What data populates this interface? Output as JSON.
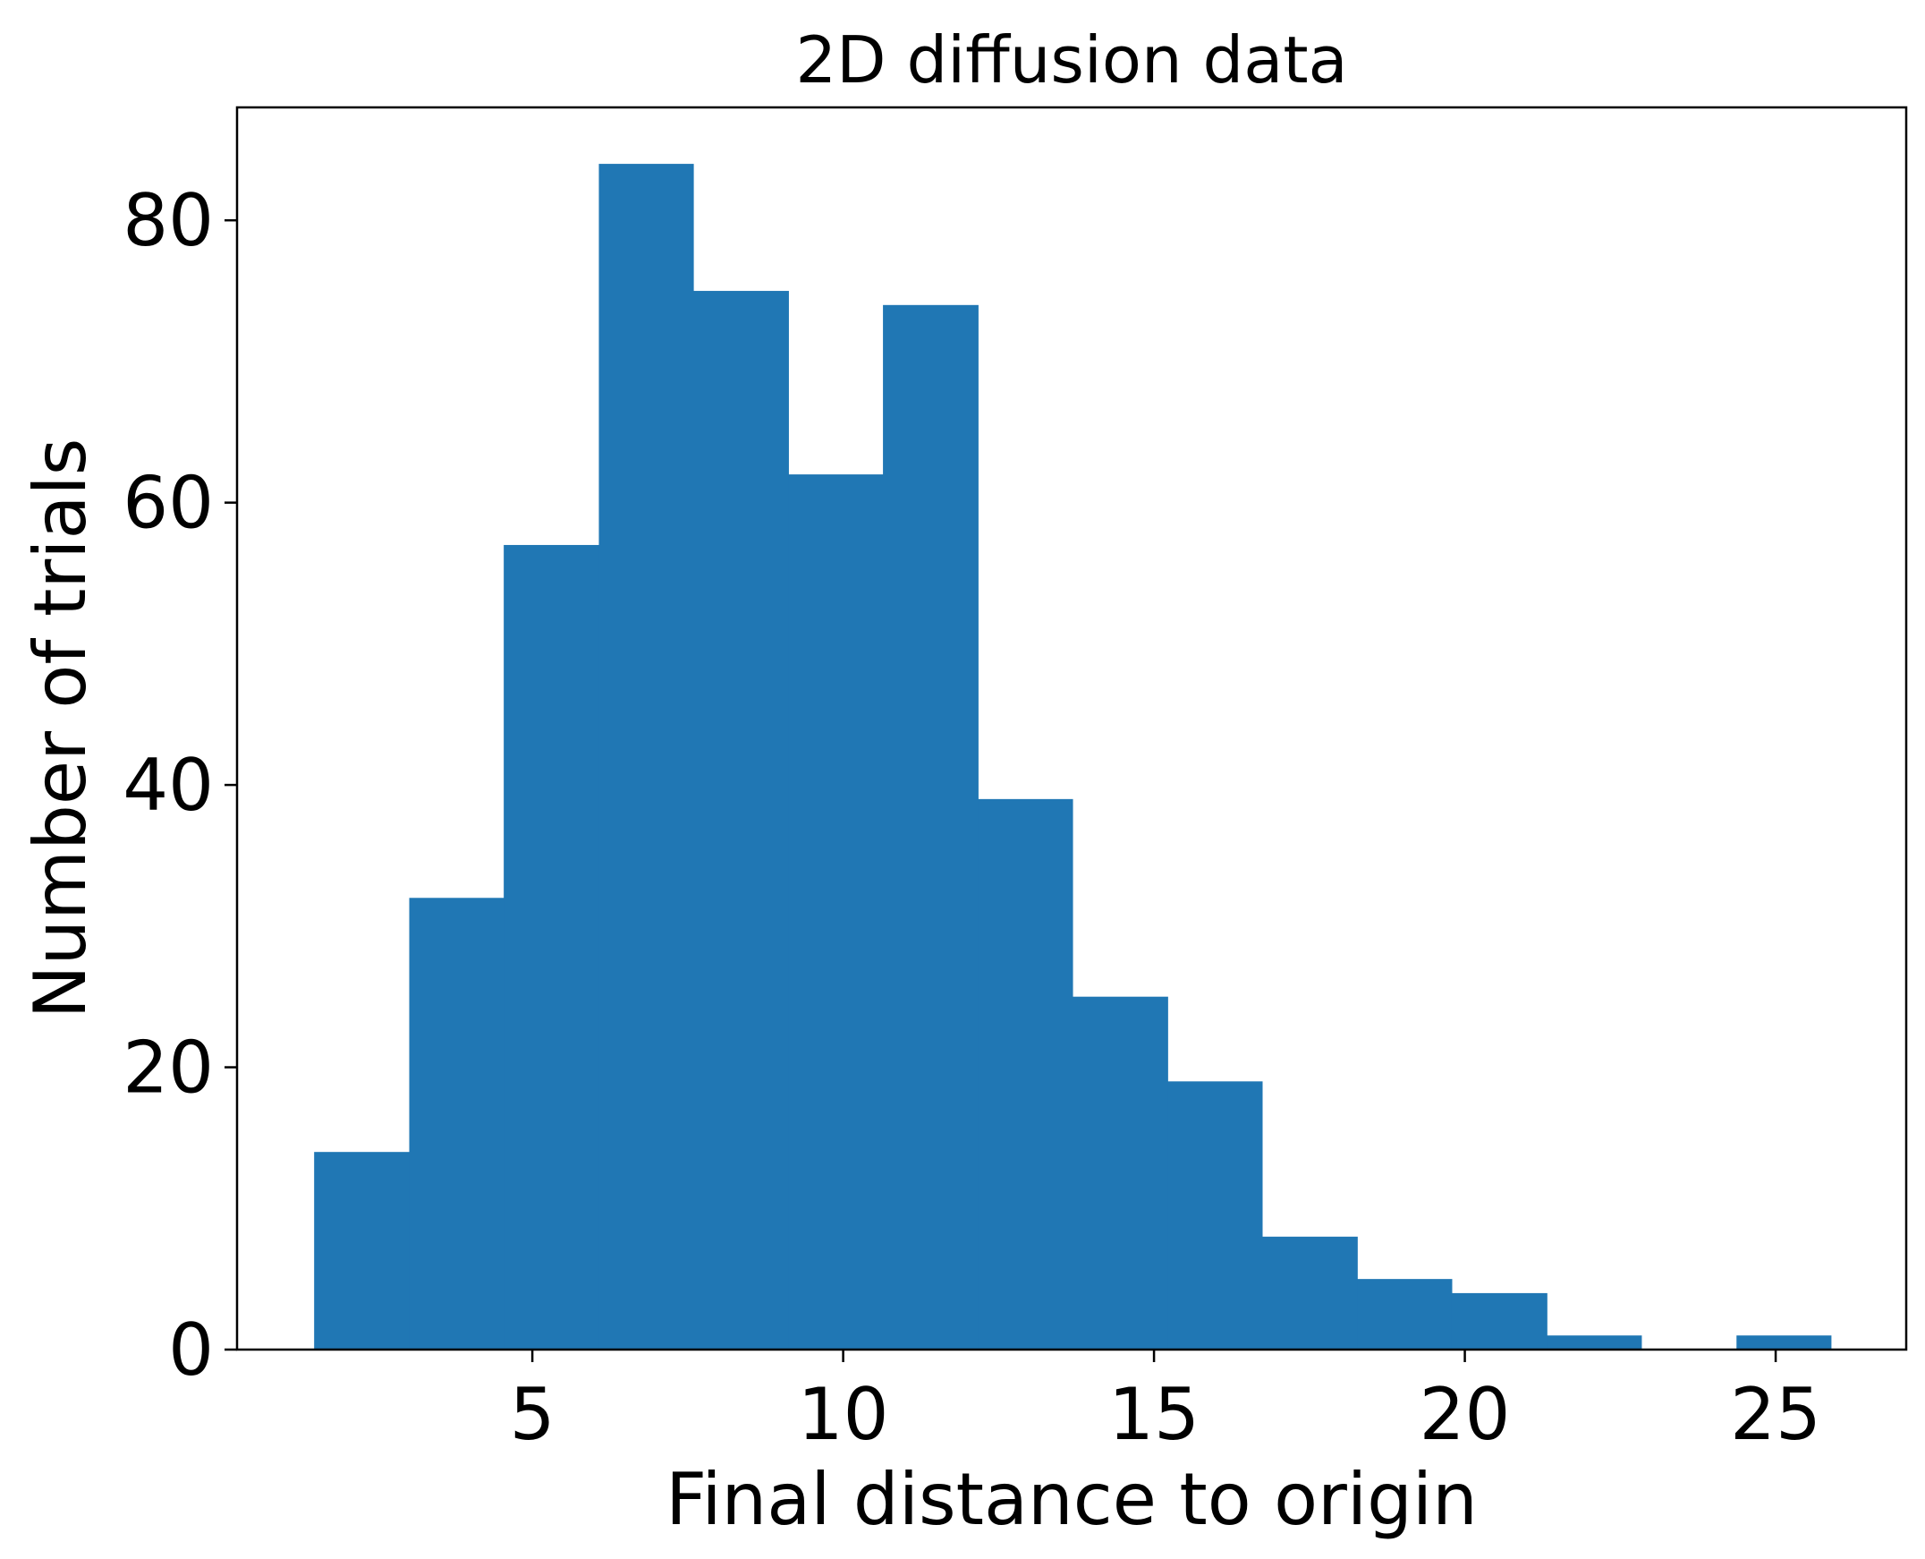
{
  "chart_data": {
    "type": "bar",
    "title": "2D diffusion data",
    "xlabel": "Final distance to origin",
    "ylabel": "Number of trials",
    "xlim": [
      0.25,
      27.1
    ],
    "ylim": [
      0,
      88
    ],
    "grid": false,
    "bar_color": "#2077b4",
    "xticks": [
      5,
      10,
      15,
      20,
      25
    ],
    "yticks": [
      0,
      20,
      40,
      60,
      80
    ],
    "bins": [
      {
        "x0": 1.49,
        "x1": 3.02,
        "count": 14
      },
      {
        "x0": 3.02,
        "x1": 4.54,
        "count": 32
      },
      {
        "x0": 4.54,
        "x1": 6.07,
        "count": 57
      },
      {
        "x0": 6.07,
        "x1": 7.59,
        "count": 84
      },
      {
        "x0": 7.59,
        "x1": 9.12,
        "count": 75
      },
      {
        "x0": 9.12,
        "x1": 10.64,
        "count": 62
      },
      {
        "x0": 10.64,
        "x1": 12.17,
        "count": 74
      },
      {
        "x0": 12.17,
        "x1": 13.69,
        "count": 39
      },
      {
        "x0": 13.69,
        "x1": 15.22,
        "count": 25
      },
      {
        "x0": 15.22,
        "x1": 16.74,
        "count": 19
      },
      {
        "x0": 16.74,
        "x1": 18.27,
        "count": 8
      },
      {
        "x0": 18.27,
        "x1": 19.79,
        "count": 5
      },
      {
        "x0": 19.79,
        "x1": 21.32,
        "count": 4
      },
      {
        "x0": 21.32,
        "x1": 22.84,
        "count": 1
      },
      {
        "x0": 22.84,
        "x1": 24.37,
        "count": 0
      },
      {
        "x0": 24.37,
        "x1": 25.89,
        "count": 1
      }
    ]
  }
}
